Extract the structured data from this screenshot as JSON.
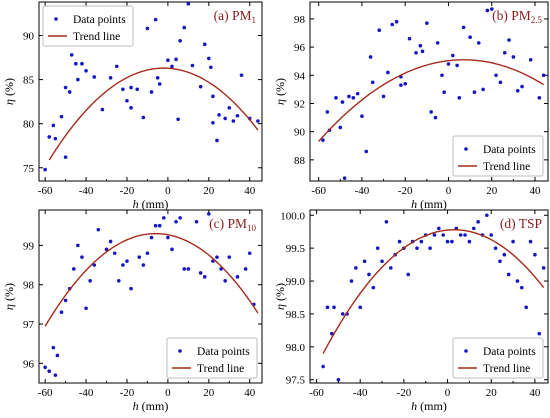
{
  "colors": {
    "points": "#1515c8",
    "trend": "#a52a1a"
  },
  "chart_data": [
    {
      "type": "scatter",
      "panel_label": "(a) PM",
      "panel_sub": "1",
      "xlabel": "h",
      "xlabel_unit": "(mm)",
      "ylabel": "η",
      "ylabel_unit": "(%)",
      "xlim": [
        -63,
        46
      ],
      "ylim": [
        73.5,
        93.8
      ],
      "xticks": [
        -60,
        -40,
        -20,
        0,
        20,
        40
      ],
      "yticks": [
        75,
        80,
        85,
        90
      ],
      "legend": {
        "position": "top-left",
        "points_label": "Data points",
        "trend_label": "Trend line"
      },
      "series": [
        {
          "name": "Data points",
          "x": [
            -60,
            -58,
            -56,
            -55,
            -52,
            -50,
            -50,
            -48,
            -47,
            -45,
            -44,
            -42,
            -40,
            -36,
            -32,
            -28,
            -25,
            -22,
            -20,
            -18,
            -18,
            -15,
            -12,
            -10,
            -8,
            -6,
            -5,
            -4,
            0,
            2,
            4,
            5,
            6,
            8,
            10,
            12,
            16,
            18,
            20,
            21,
            22,
            22,
            24,
            25,
            28,
            30,
            32,
            34,
            36,
            40,
            44
          ],
          "y": [
            74.8,
            78.5,
            79.8,
            78.3,
            80.8,
            76.2,
            84.1,
            83.6,
            87.8,
            86.8,
            85.0,
            86.8,
            86.0,
            85.3,
            81.6,
            85.2,
            86.5,
            83.9,
            82.6,
            81.8,
            84.1,
            83.9,
            80.7,
            90.8,
            83.6,
            91.8,
            85.2,
            84.5,
            87.2,
            86.5,
            87.3,
            80.5,
            89.4,
            90.9,
            93.6,
            86.6,
            84.2,
            89.0,
            87.4,
            86.4,
            80.1,
            83.1,
            78.1,
            81.0,
            80.6,
            81.8,
            80.3,
            80.9,
            85.5,
            80.6,
            80.3
          ]
        },
        {
          "name": "Trend line",
          "fit": {
            "a": -0.00332,
            "x0": -2,
            "ymax": 86.3,
            "x_range": [
              -58,
              44
            ]
          }
        }
      ]
    },
    {
      "type": "scatter",
      "panel_label": "(b) PM",
      "panel_sub": "2.5",
      "xlabel": "h",
      "xlabel_unit": "(mm)",
      "ylabel": "η",
      "ylabel_unit": "(%)",
      "xlim": [
        -64,
        46
      ],
      "ylim": [
        86.5,
        99.2
      ],
      "xticks": [
        -60,
        -40,
        -20,
        0,
        20,
        40
      ],
      "yticks": [
        88,
        90,
        92,
        94,
        96,
        98
      ],
      "legend": {
        "position": "bottom-right",
        "points_label": "Data points",
        "trend_label": "Trend line"
      },
      "series": [
        {
          "name": "Data points",
          "x": [
            -58,
            -56,
            -55,
            -52,
            -50,
            -49,
            -48,
            -46,
            -44,
            -42,
            -40,
            -38,
            -36,
            -35,
            -32,
            -30,
            -28,
            -26,
            -24,
            -22,
            -22,
            -20,
            -18,
            -15,
            -13,
            -12,
            -10,
            -8,
            -6,
            -5,
            -3,
            -2,
            0,
            2,
            4,
            5,
            7,
            10,
            12,
            14,
            16,
            18,
            20,
            22,
            24,
            26,
            28,
            30,
            32,
            34,
            38,
            42,
            44
          ],
          "y": [
            89.4,
            91.4,
            90.1,
            92.4,
            90.3,
            92.1,
            86.7,
            92.5,
            92.4,
            92.7,
            91.1,
            88.6,
            95.3,
            93.5,
            97.2,
            92.5,
            94.2,
            97.6,
            97.8,
            93.3,
            93.9,
            93.4,
            96.6,
            95.6,
            96.1,
            95.7,
            97.7,
            91.4,
            91.0,
            96.3,
            94.0,
            92.8,
            94.8,
            95.4,
            94.7,
            92.4,
            97.4,
            96.7,
            92.8,
            96.3,
            93.0,
            98.6,
            98.7,
            94.0,
            93.5,
            95.6,
            96.5,
            95.3,
            92.9,
            93.2,
            95.1,
            92.4,
            94.0
          ]
        },
        {
          "name": "Trend line",
          "fit": {
            "a": -0.00129,
            "x0": 7,
            "ymax": 95.1,
            "x_range": [
              -60,
              44
            ]
          }
        }
      ]
    },
    {
      "type": "scatter",
      "panel_label": "(c) PM",
      "panel_sub": "10",
      "xlabel": "h",
      "xlabel_unit": "(mm)",
      "ylabel": "η",
      "ylabel_unit": "(%)",
      "xlim": [
        -63,
        46
      ],
      "ylim": [
        95.5,
        99.9
      ],
      "xticks": [
        -60,
        -40,
        -20,
        0,
        20,
        40
      ],
      "yticks": [
        96,
        97,
        98,
        99
      ],
      "legend": {
        "position": "bottom-right",
        "points_label": "Data points",
        "trend_label": "Trend line"
      },
      "series": [
        {
          "name": "Data points",
          "x": [
            -60,
            -58,
            -56,
            -55,
            -54,
            -52,
            -50,
            -48,
            -46,
            -44,
            -42,
            -40,
            -38,
            -36,
            -34,
            -30,
            -28,
            -26,
            -24,
            -22,
            -20,
            -18,
            -14,
            -12,
            -10,
            -8,
            -6,
            -4,
            -2,
            0,
            2,
            4,
            6,
            8,
            10,
            14,
            16,
            18,
            20,
            22,
            24,
            26,
            28,
            30,
            34,
            38,
            40,
            42
          ],
          "y": [
            95.9,
            95.8,
            96.4,
            95.7,
            96.2,
            97.3,
            97.6,
            97.9,
            98.4,
            99.0,
            98.7,
            97.4,
            98.1,
            98.5,
            99.4,
            98.9,
            99.1,
            98.8,
            98.1,
            98.5,
            98.6,
            97.9,
            98.7,
            98.5,
            98.8,
            99.2,
            99.5,
            99.5,
            99.7,
            99.2,
            98.9,
            99.6,
            99.7,
            98.4,
            98.4,
            99.6,
            98.3,
            98.2,
            99.8,
            98.6,
            98.7,
            98.4,
            98.1,
            98.7,
            98.2,
            98.4,
            98.8,
            97.5
          ]
        },
        {
          "name": "Trend line",
          "fit": {
            "a": -0.000808,
            "x0": -6,
            "ymax": 99.3,
            "x_range": [
              -60,
              44
            ]
          }
        }
      ]
    },
    {
      "type": "scatter",
      "panel_label": "(d) TSP",
      "panel_sub": "",
      "xlabel": "h",
      "xlabel_unit": "(mm)",
      "ylabel": "η",
      "ylabel_unit": "(%)",
      "xlim": [
        -63,
        46
      ],
      "ylim": [
        97.45,
        100.08
      ],
      "xticks": [
        -60,
        -40,
        -20,
        0,
        20,
        40
      ],
      "yticks": [
        97.5,
        98.0,
        98.5,
        99.0,
        99.5,
        100.0
      ],
      "legend": {
        "position": "bottom-right",
        "points_label": "Data points",
        "trend_label": "Trend line"
      },
      "series": [
        {
          "name": "Data points",
          "x": [
            -57,
            -55,
            -53,
            -52,
            -50,
            -48,
            -46,
            -44,
            -42,
            -40,
            -38,
            -36,
            -34,
            -32,
            -30,
            -28,
            -26,
            -24,
            -22,
            -20,
            -18,
            -16,
            -14,
            -12,
            -10,
            -8,
            -6,
            -4,
            -2,
            0,
            2,
            4,
            6,
            8,
            10,
            12,
            14,
            16,
            18,
            20,
            22,
            24,
            26,
            28,
            30,
            32,
            34,
            36,
            38,
            40,
            42,
            44
          ],
          "y": [
            97.7,
            98.6,
            98.2,
            98.6,
            97.5,
            98.5,
            98.5,
            99.0,
            99.2,
            98.6,
            99.3,
            99.1,
            98.9,
            99.5,
            99.3,
            99.9,
            99.2,
            99.4,
            99.6,
            99.5,
            99.1,
            99.6,
            99.5,
            99.6,
            99.7,
            99.5,
            99.7,
            99.8,
            99.7,
            99.6,
            99.6,
            99.8,
            99.7,
            99.7,
            99.6,
            99.8,
            99.9,
            99.7,
            100.0,
            99.7,
            99.5,
            99.3,
            99.4,
            99.1,
            99.6,
            99.0,
            98.9,
            98.6,
            99.6,
            99.4,
            98.2,
            99.2
          ]
        },
        {
          "name": "Trend line",
          "fit": {
            "a": -0.000523,
            "x0": 3,
            "ymax": 99.78,
            "x_range": [
              -57,
              44
            ]
          }
        }
      ]
    }
  ]
}
